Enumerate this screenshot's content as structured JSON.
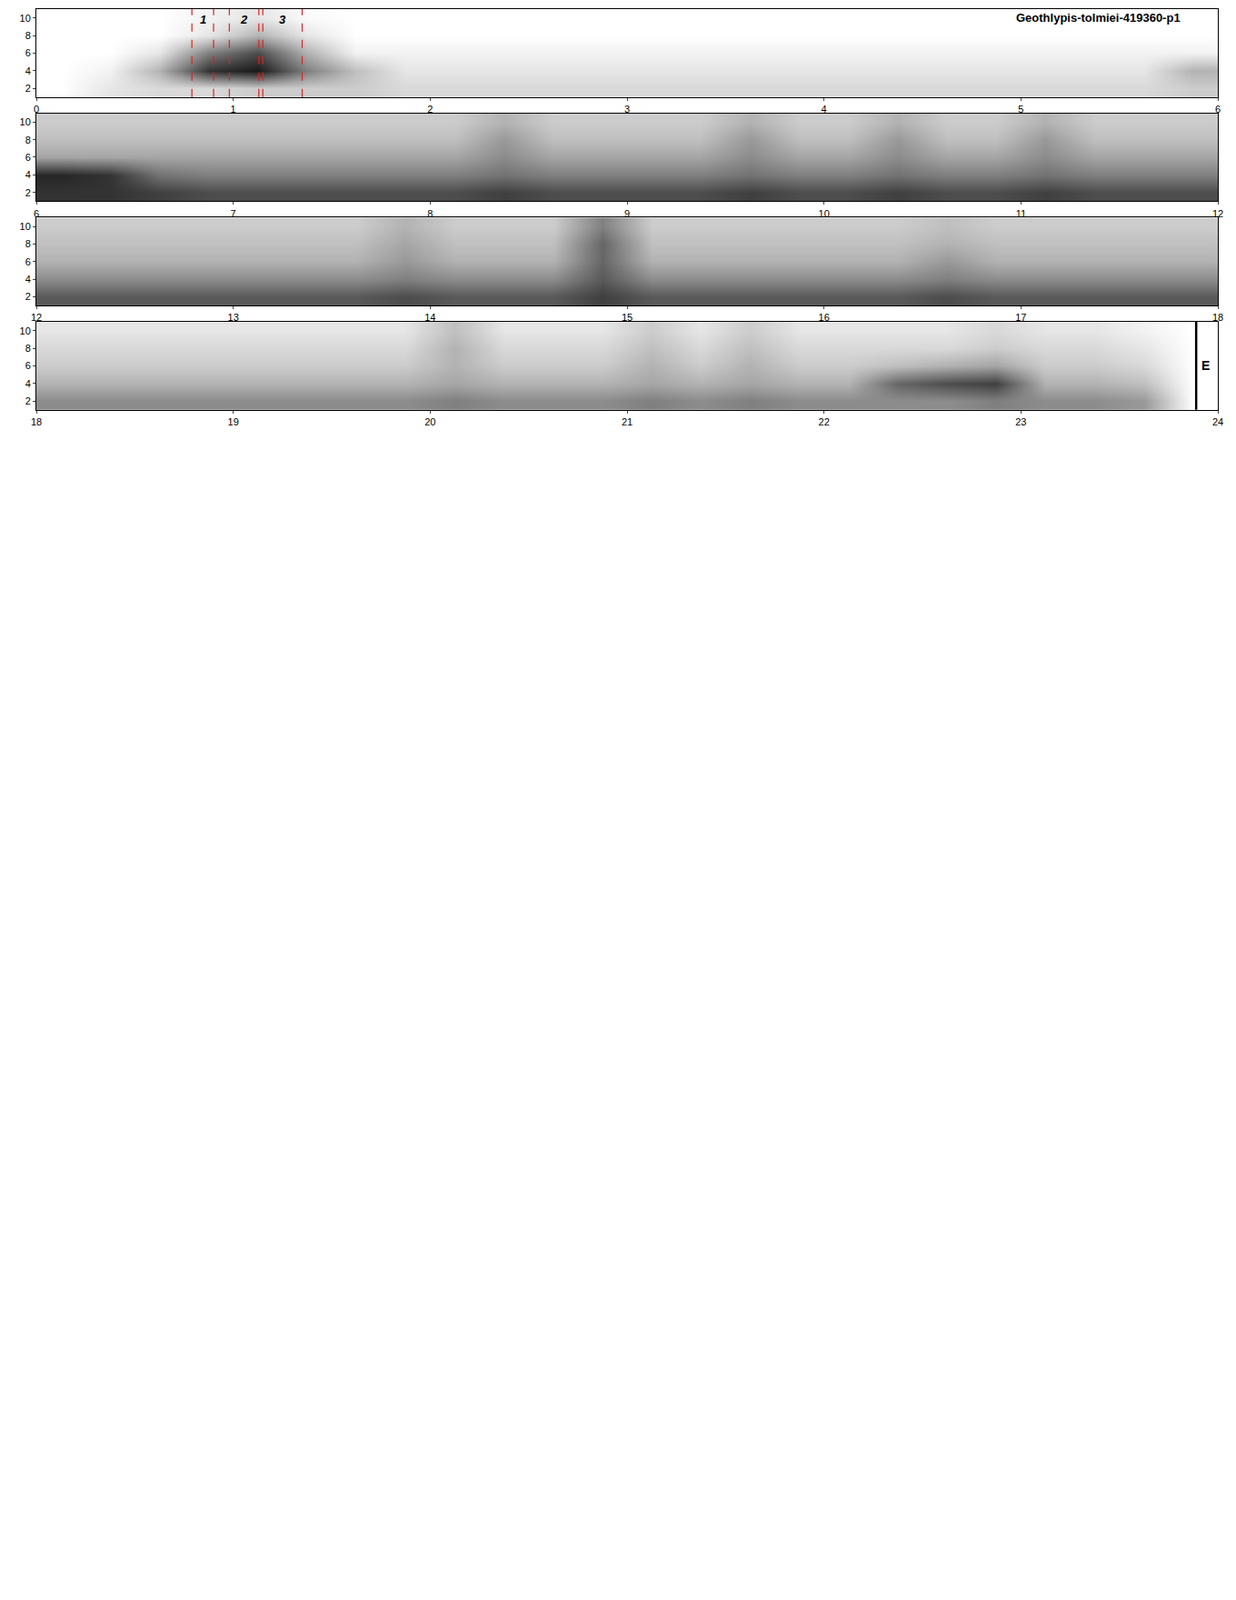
{
  "chart_data": {
    "type": "heatmap",
    "title": "Geothlypis-tolmiei-419360-p1",
    "ylim": [
      1,
      11
    ],
    "yticks": [
      2,
      4,
      6,
      8,
      10
    ],
    "y": [
      2,
      4,
      6,
      8,
      10
    ],
    "dx": 0.25,
    "zlim": [
      0,
      1
    ],
    "panels": [
      {
        "xlim": [
          0,
          6
        ],
        "xticks": [
          0,
          1,
          2,
          3,
          4,
          5,
          6
        ],
        "x0": 0.125,
        "cells": [
          [
            0,
            0.1,
            0.15,
            0.15,
            0.2,
            0.2,
            0.2,
            0.15,
            0.15,
            0.15,
            0.15,
            0.15,
            0.15,
            0.15,
            0.15,
            0.15,
            0.15,
            0.15,
            0.15,
            0.15,
            0.15,
            0.15,
            0.15,
            0.2
          ],
          [
            0,
            0.05,
            0.3,
            0.8,
            0.9,
            0.5,
            0.25,
            0.1,
            0.1,
            0.1,
            0.1,
            0.1,
            0.1,
            0.1,
            0.1,
            0.1,
            0.1,
            0.1,
            0.1,
            0.1,
            0.1,
            0.1,
            0.1,
            0.3
          ],
          [
            0,
            0,
            0.1,
            0.5,
            0.7,
            0.3,
            0.05,
            0.05,
            0.05,
            0.05,
            0.05,
            0.05,
            0.05,
            0.05,
            0.05,
            0.05,
            0.05,
            0.05,
            0.05,
            0.05,
            0.05,
            0.05,
            0.05,
            0.05
          ],
          [
            0,
            0,
            0,
            0.1,
            0.3,
            0.1,
            0,
            0,
            0,
            0,
            0,
            0,
            0,
            0,
            0,
            0,
            0,
            0,
            0,
            0,
            0,
            0,
            0,
            0
          ],
          [
            0,
            0,
            0,
            0.05,
            0.1,
            0.02,
            0,
            0,
            0,
            0,
            0,
            0,
            0,
            0,
            0,
            0,
            0,
            0,
            0,
            0,
            0,
            0,
            0,
            0
          ]
        ]
      },
      {
        "xlim": [
          6,
          12
        ],
        "xticks": [
          6,
          7,
          8,
          9,
          10,
          11,
          12
        ],
        "x0": 6.125,
        "cells": [
          [
            0.8,
            0.8,
            0.75,
            0.7,
            0.7,
            0.7,
            0.7,
            0.7,
            0.7,
            0.75,
            0.7,
            0.7,
            0.7,
            0.7,
            0.75,
            0.7,
            0.7,
            0.75,
            0.7,
            0.7,
            0.75,
            0.7,
            0.7,
            0.7
          ],
          [
            0.85,
            0.8,
            0.55,
            0.5,
            0.5,
            0.5,
            0.5,
            0.5,
            0.5,
            0.55,
            0.5,
            0.5,
            0.5,
            0.5,
            0.55,
            0.5,
            0.5,
            0.55,
            0.5,
            0.5,
            0.55,
            0.5,
            0.5,
            0.5
          ],
          [
            0.35,
            0.35,
            0.35,
            0.35,
            0.35,
            0.35,
            0.35,
            0.35,
            0.35,
            0.45,
            0.35,
            0.35,
            0.35,
            0.35,
            0.45,
            0.35,
            0.35,
            0.45,
            0.35,
            0.35,
            0.45,
            0.35,
            0.35,
            0.35
          ],
          [
            0.25,
            0.25,
            0.25,
            0.25,
            0.25,
            0.25,
            0.25,
            0.25,
            0.25,
            0.4,
            0.25,
            0.25,
            0.25,
            0.25,
            0.4,
            0.25,
            0.25,
            0.4,
            0.25,
            0.25,
            0.4,
            0.25,
            0.25,
            0.25
          ],
          [
            0.2,
            0.2,
            0.2,
            0.2,
            0.2,
            0.2,
            0.2,
            0.2,
            0.2,
            0.3,
            0.2,
            0.2,
            0.2,
            0.2,
            0.3,
            0.2,
            0.2,
            0.3,
            0.2,
            0.2,
            0.3,
            0.2,
            0.2,
            0.2
          ]
        ]
      },
      {
        "xlim": [
          12,
          18
        ],
        "xticks": [
          12,
          13,
          14,
          15,
          16,
          17,
          18
        ],
        "x0": 12.125,
        "cells": [
          [
            0.65,
            0.65,
            0.65,
            0.65,
            0.65,
            0.65,
            0.65,
            0.7,
            0.65,
            0.65,
            0.65,
            0.75,
            0.65,
            0.65,
            0.65,
            0.65,
            0.65,
            0.65,
            0.7,
            0.65,
            0.65,
            0.65,
            0.65,
            0.65
          ],
          [
            0.45,
            0.45,
            0.45,
            0.45,
            0.45,
            0.45,
            0.45,
            0.5,
            0.45,
            0.45,
            0.45,
            0.65,
            0.45,
            0.45,
            0.45,
            0.45,
            0.45,
            0.45,
            0.5,
            0.45,
            0.45,
            0.45,
            0.45,
            0.45
          ],
          [
            0.3,
            0.3,
            0.3,
            0.3,
            0.3,
            0.3,
            0.3,
            0.4,
            0.3,
            0.3,
            0.3,
            0.6,
            0.3,
            0.3,
            0.3,
            0.3,
            0.3,
            0.3,
            0.4,
            0.3,
            0.3,
            0.3,
            0.3,
            0.3
          ],
          [
            0.25,
            0.25,
            0.25,
            0.25,
            0.25,
            0.25,
            0.25,
            0.35,
            0.25,
            0.25,
            0.25,
            0.6,
            0.25,
            0.25,
            0.25,
            0.25,
            0.25,
            0.25,
            0.3,
            0.25,
            0.25,
            0.25,
            0.25,
            0.25
          ],
          [
            0.2,
            0.2,
            0.2,
            0.2,
            0.2,
            0.2,
            0.2,
            0.3,
            0.2,
            0.2,
            0.2,
            0.5,
            0.2,
            0.2,
            0.2,
            0.2,
            0.2,
            0.2,
            0.25,
            0.2,
            0.2,
            0.2,
            0.2,
            0.2
          ]
        ]
      },
      {
        "xlim": [
          18,
          24
        ],
        "xticks": [
          18,
          19,
          20,
          21,
          22,
          23,
          24
        ],
        "x0": 18.125,
        "cells": [
          [
            0.45,
            0.45,
            0.45,
            0.45,
            0.45,
            0.45,
            0.45,
            0.45,
            0.5,
            0.45,
            0.45,
            0.45,
            0.5,
            0.45,
            0.5,
            0.45,
            0.45,
            0.45,
            0.45,
            0.5,
            0.45,
            0.45,
            0.4,
            0
          ],
          [
            0.3,
            0.3,
            0.3,
            0.3,
            0.3,
            0.3,
            0.3,
            0.3,
            0.35,
            0.3,
            0.3,
            0.3,
            0.35,
            0.3,
            0.35,
            0.3,
            0.3,
            0.6,
            0.7,
            0.75,
            0.3,
            0.3,
            0.25,
            0
          ],
          [
            0.2,
            0.2,
            0.2,
            0.2,
            0.2,
            0.2,
            0.2,
            0.2,
            0.3,
            0.2,
            0.2,
            0.2,
            0.3,
            0.2,
            0.3,
            0.2,
            0.2,
            0.25,
            0.3,
            0.35,
            0.2,
            0.2,
            0.15,
            0
          ],
          [
            0.15,
            0.15,
            0.15,
            0.15,
            0.15,
            0.15,
            0.15,
            0.15,
            0.3,
            0.15,
            0.15,
            0.15,
            0.25,
            0.15,
            0.25,
            0.15,
            0.15,
            0.15,
            0.15,
            0.2,
            0.15,
            0.15,
            0.1,
            0
          ],
          [
            0.1,
            0.1,
            0.1,
            0.1,
            0.1,
            0.1,
            0.1,
            0.1,
            0.25,
            0.1,
            0.1,
            0.1,
            0.2,
            0.1,
            0.2,
            0.1,
            0.1,
            0.1,
            0.1,
            0.15,
            0.1,
            0.1,
            0.05,
            0
          ]
        ]
      }
    ],
    "segments": [
      {
        "label": "1",
        "x0": 0.79,
        "x1": 0.9
      },
      {
        "label": "2",
        "x0": 0.98,
        "x1": 1.13
      },
      {
        "label": "3",
        "x0": 1.15,
        "x1": 1.35
      }
    ],
    "end_marker": {
      "label": "E",
      "x": 23.89
    },
    "empty_panels": 11
  }
}
